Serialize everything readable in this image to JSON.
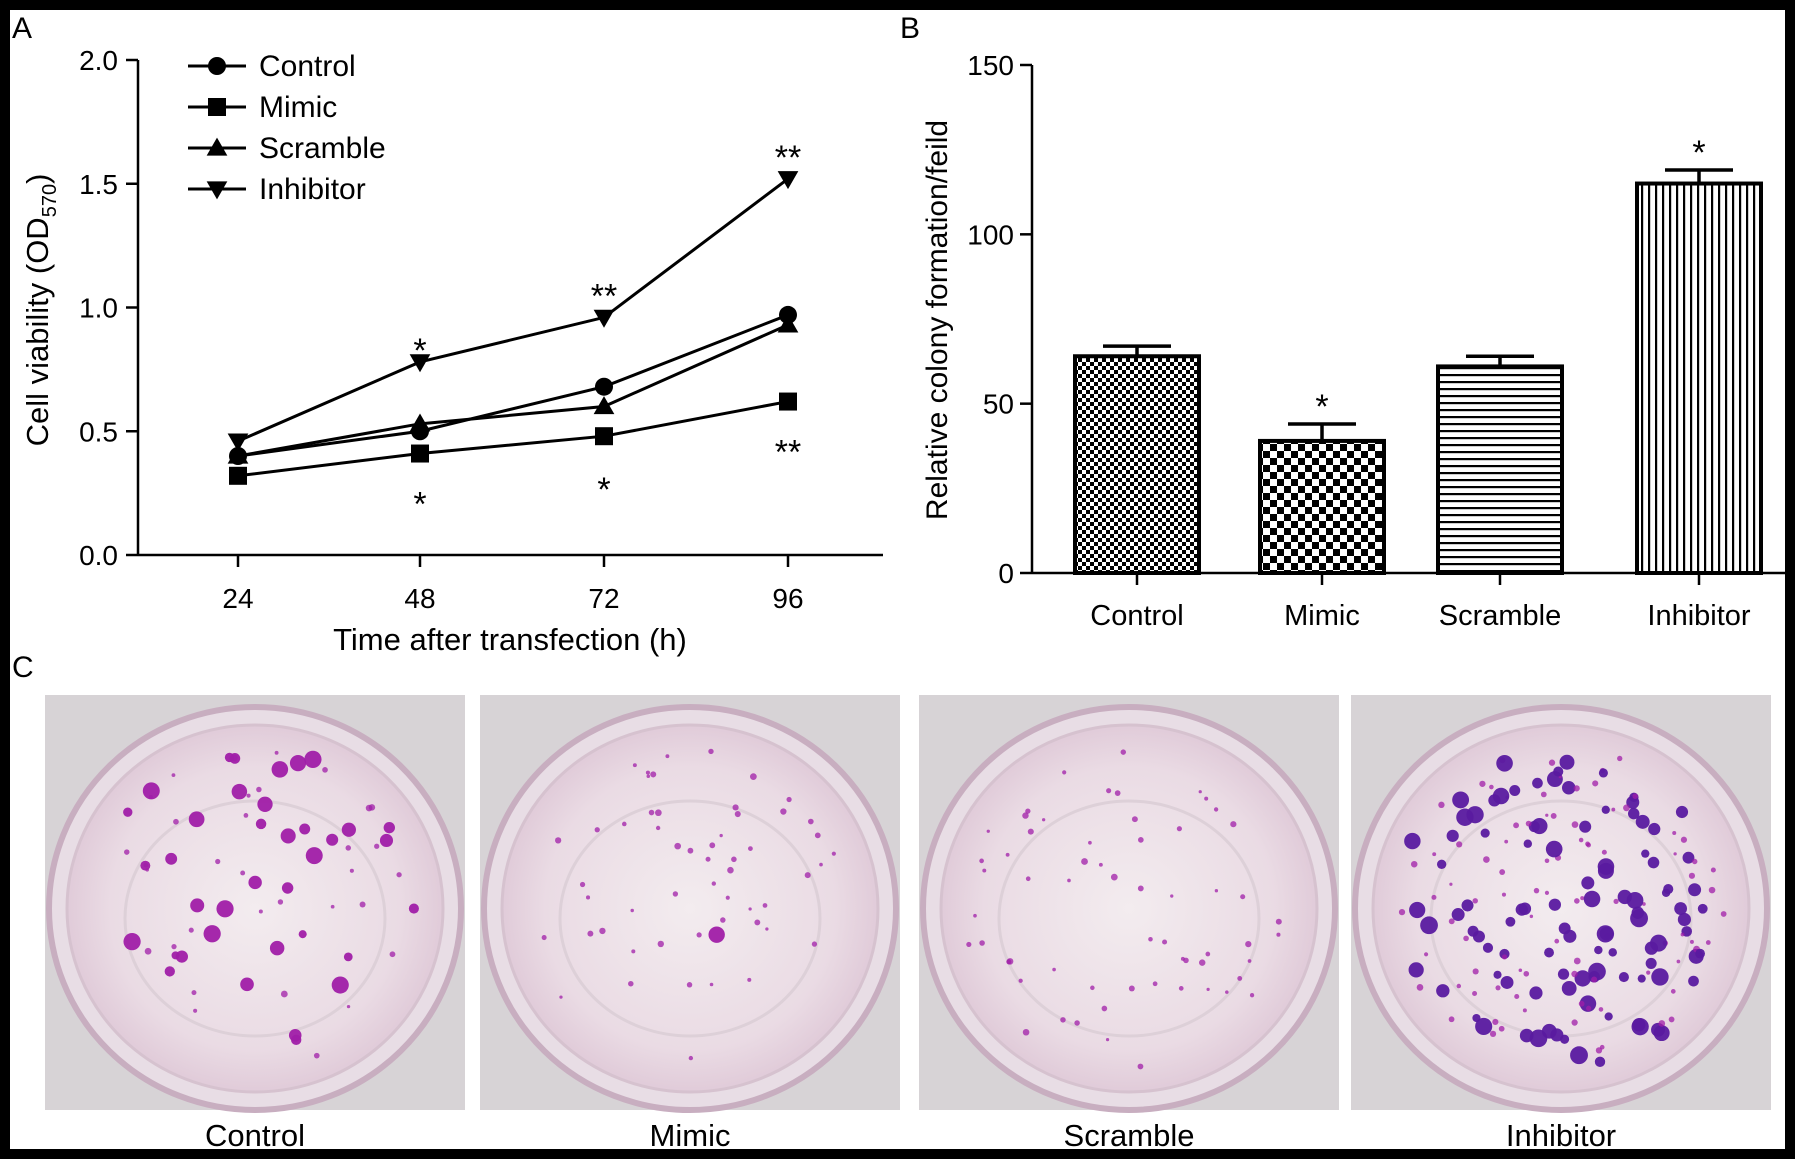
{
  "panels": {
    "A": "A",
    "B": "B",
    "C": "C"
  },
  "chart_data": [
    {
      "type": "line",
      "panel": "A",
      "title": "",
      "xlabel": "Time after transfection (h)",
      "ylabel_main": "Cell viability (OD",
      "ylabel_sub": "570",
      "ylabel_end": ")",
      "x": [
        24,
        48,
        72,
        96
      ],
      "x_tick_labels": [
        "24",
        "48",
        "72",
        "96"
      ],
      "ylim": [
        0.0,
        2.0
      ],
      "y_ticks": [
        0.0,
        0.5,
        1.0,
        1.5,
        2.0
      ],
      "y_tick_labels": [
        "0.0",
        "0.5",
        "1.0",
        "1.5",
        "2.0"
      ],
      "legend_position": "top-left",
      "series": [
        {
          "name": "Control",
          "marker": "circle",
          "values": [
            0.4,
            0.5,
            0.68,
            0.97
          ]
        },
        {
          "name": "Mimic",
          "marker": "square",
          "values": [
            0.32,
            0.41,
            0.48,
            0.62
          ]
        },
        {
          "name": "Scramble",
          "marker": "triangle-up",
          "values": [
            0.4,
            0.53,
            0.6,
            0.93
          ]
        },
        {
          "name": "Inhibitor",
          "marker": "triangle-down",
          "values": [
            0.46,
            0.78,
            0.96,
            1.52
          ]
        }
      ],
      "annotations": [
        {
          "text": "*",
          "x": 48,
          "y": 0.86
        },
        {
          "text": "*",
          "x": 48,
          "y": 0.24
        },
        {
          "text": "**",
          "x": 72,
          "y": 1.08
        },
        {
          "text": "*",
          "x": 72,
          "y": 0.3
        },
        {
          "text": "**",
          "x": 96,
          "y": 1.64
        },
        {
          "text": "**",
          "x": 96,
          "y": 0.45
        }
      ]
    },
    {
      "type": "bar",
      "panel": "B",
      "title": "",
      "xlabel": "",
      "ylabel": "Relative colony formation/feild",
      "categories": [
        "Control",
        "Mimic",
        "Scramble",
        "Inhibitor"
      ],
      "patterns": [
        "checker-fine",
        "checker-coarse",
        "horizontal-lines",
        "vertical-lines"
      ],
      "values": [
        64,
        39,
        61,
        115
      ],
      "errors": [
        3,
        5,
        3,
        4
      ],
      "ylim": [
        0,
        150
      ],
      "y_ticks": [
        0,
        50,
        100,
        150
      ],
      "y_tick_labels": [
        "0",
        "50",
        "100",
        "150"
      ],
      "annotations": [
        {
          "category": "Mimic",
          "text": "*"
        },
        {
          "category": "Inhibitor",
          "text": "*"
        }
      ]
    }
  ],
  "photo_panel": {
    "labels": [
      "Control",
      "Mimic",
      "Scramble",
      "Inhibitor"
    ],
    "colony_color": "#a01ea8",
    "dark_colony_color": "#5a1aa0",
    "dish_tint": "#efe1ec"
  }
}
